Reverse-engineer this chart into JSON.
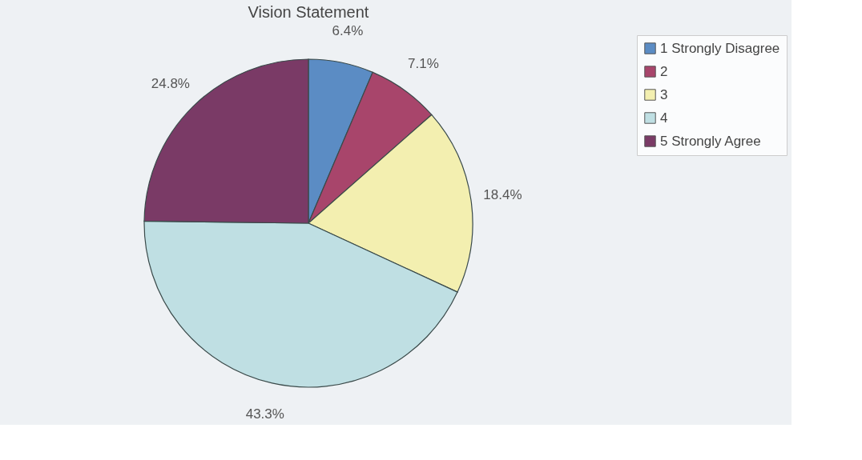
{
  "chart_data": {
    "type": "pie",
    "title": "Vision Statement",
    "categories": [
      "1 Strongly Disagree",
      "2",
      "3",
      "4",
      "5 Strongly Agree"
    ],
    "values": [
      6.4,
      7.1,
      18.4,
      43.3,
      24.8
    ],
    "value_labels": [
      "6.4%",
      "7.1%",
      "18.4%",
      "43.3%",
      "24.8%"
    ],
    "colors": [
      "#5b8cc4",
      "#a8456b",
      "#f3efb0",
      "#bfdfe3",
      "#7a3a66"
    ],
    "legend": "right"
  }
}
